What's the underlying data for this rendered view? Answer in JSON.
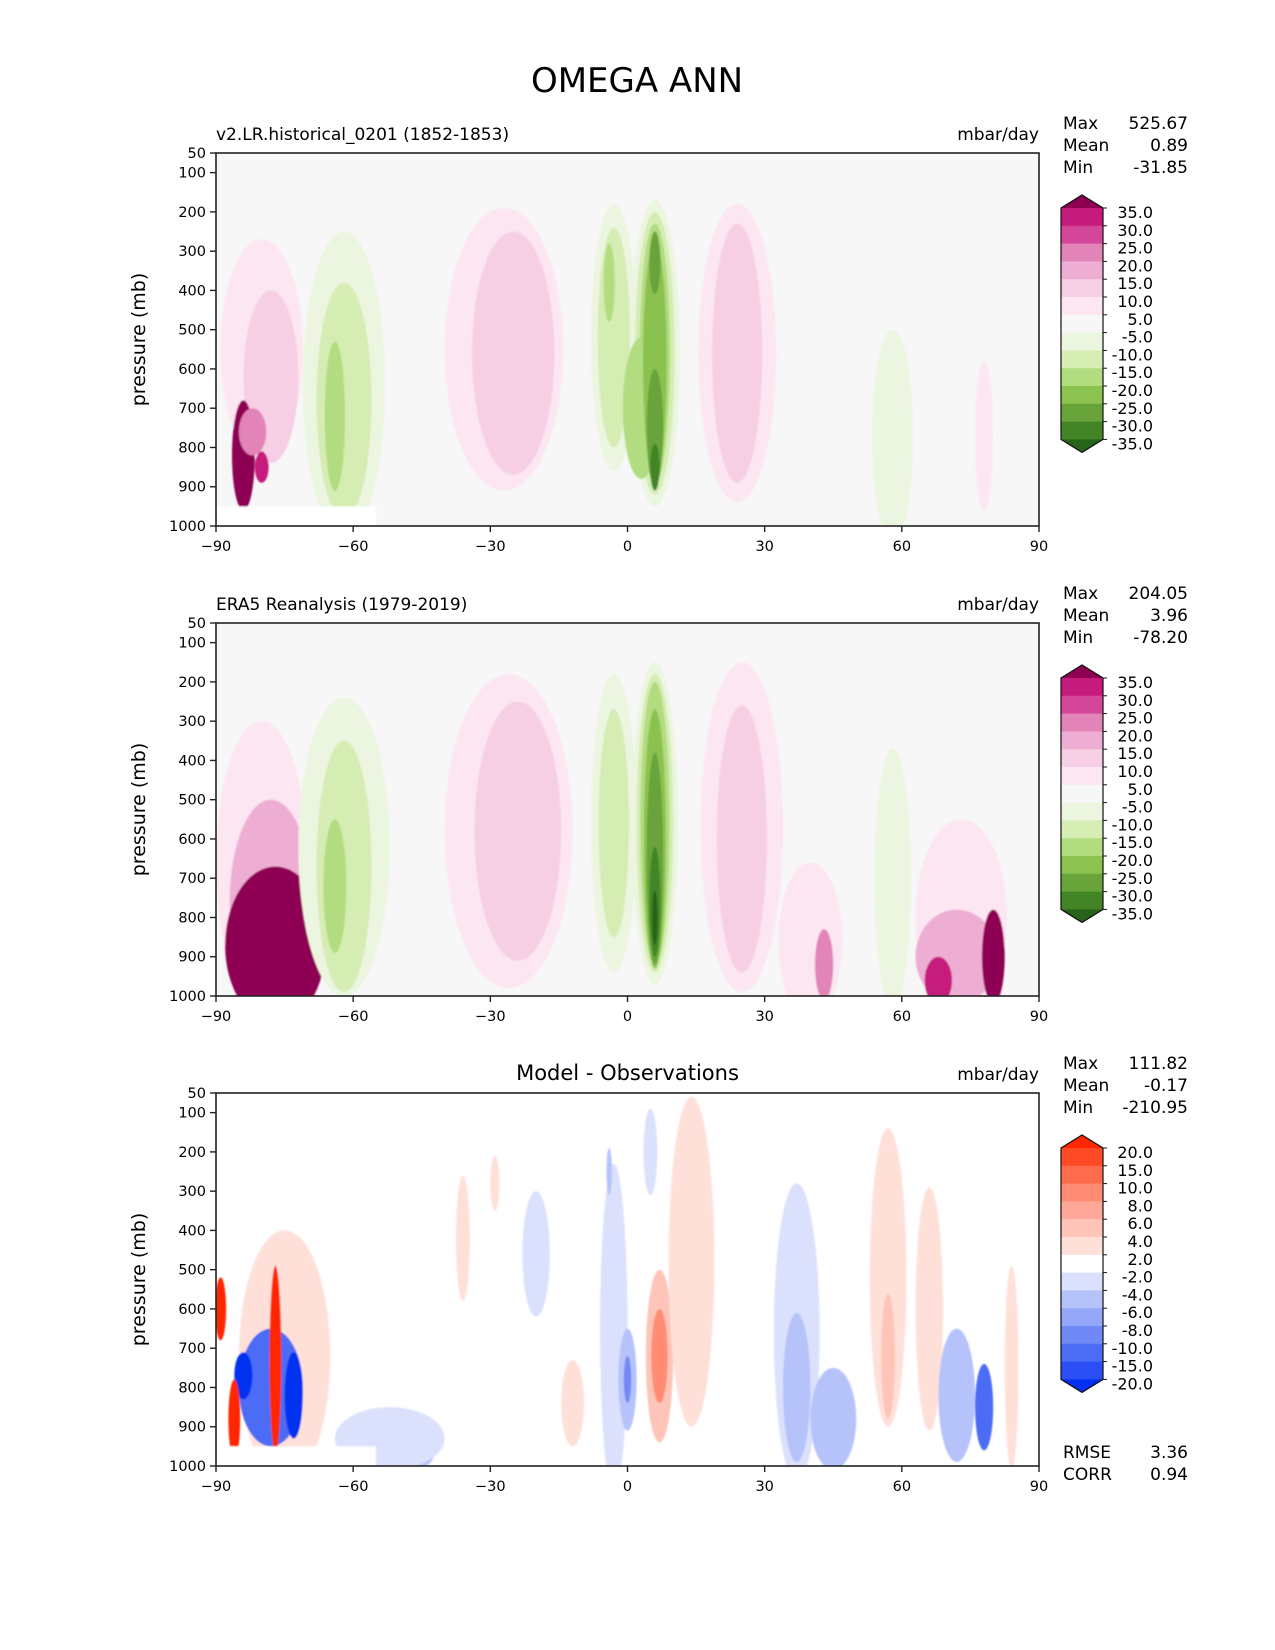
{
  "chart_data": {
    "type": "heatmap",
    "title": "OMEGA ANN",
    "panels": [
      {
        "id": "model",
        "title_left": "v2.LR.historical_0201 (1852-1853)",
        "title_center": "",
        "units": "mbar/day",
        "stats": [
          {
            "label": "Max",
            "value": "525.67"
          },
          {
            "label": "Mean",
            "value": "0.89"
          },
          {
            "label": "Min",
            "value": "-31.85"
          }
        ],
        "colormap": "PiYG_r",
        "background": "#f7f7f7",
        "colorbar": {
          "extend": "both",
          "labels": [
            "35.0",
            "30.0",
            "25.0",
            "20.0",
            "15.0",
            "10.0",
            "5.0",
            "-5.0",
            "-10.0",
            "-15.0",
            "-20.0",
            "-25.0",
            "-30.0",
            "-35.0"
          ],
          "colors": [
            "#8e0152",
            "#c51b7d",
            "#d4469a",
            "#e284b8",
            "#eeaed3",
            "#f7cfe4",
            "#fbe6f1",
            "#f7f7f7",
            "#ebf5df",
            "#d5ecb3",
            "#b1dc7f",
            "#8bc250",
            "#68a43a",
            "#438526",
            "#276419"
          ]
        },
        "blobs": [
          {
            "lat": -80,
            "p": 550,
            "dlat": 9,
            "dp": 280,
            "color": "#fbe6f1"
          },
          {
            "lat": -78,
            "p": 620,
            "dlat": 6,
            "dp": 220,
            "color": "#f7cfe4"
          },
          {
            "lat": -62,
            "p": 640,
            "dlat": 9,
            "dp": 390,
            "color": "#ebf5df"
          },
          {
            "lat": -62,
            "p": 680,
            "dlat": 6,
            "dp": 300,
            "color": "#d5ecb3"
          },
          {
            "lat": -64,
            "p": 720,
            "dlat": 2.2,
            "dp": 190,
            "color": "#b1dc7f"
          },
          {
            "lat": -27,
            "p": 550,
            "dlat": 13,
            "dp": 360,
            "color": "#fbe6f1"
          },
          {
            "lat": -25,
            "p": 560,
            "dlat": 9,
            "dp": 310,
            "color": "#f7cfe4"
          },
          {
            "lat": -3,
            "p": 520,
            "dlat": 5,
            "dp": 340,
            "color": "#ebf5df"
          },
          {
            "lat": -3,
            "p": 520,
            "dlat": 3.5,
            "dp": 280,
            "color": "#d5ecb3"
          },
          {
            "lat": -4,
            "p": 380,
            "dlat": 1.2,
            "dp": 100,
            "color": "#b1dc7f"
          },
          {
            "lat": 6,
            "p": 560,
            "dlat": 5.5,
            "dp": 390,
            "color": "#ebf5df"
          },
          {
            "lat": 6,
            "p": 560,
            "dlat": 4.3,
            "dp": 360,
            "color": "#d5ecb3"
          },
          {
            "lat": 3,
            "p": 700,
            "dlat": 4,
            "dp": 180,
            "color": "#b1dc7f"
          },
          {
            "lat": 6,
            "p": 560,
            "dlat": 3.3,
            "dp": 330,
            "color": "#b1dc7f"
          },
          {
            "lat": 6,
            "p": 580,
            "dlat": 2.6,
            "dp": 300,
            "color": "#8bc250"
          },
          {
            "lat": 6,
            "p": 750,
            "dlat": 1.8,
            "dp": 150,
            "color": "#68a43a"
          },
          {
            "lat": 6,
            "p": 330,
            "dlat": 1.2,
            "dp": 80,
            "color": "#68a43a"
          },
          {
            "lat": 6,
            "p": 850,
            "dlat": 1,
            "dp": 60,
            "color": "#438526"
          },
          {
            "lat": 24,
            "p": 560,
            "dlat": 8.5,
            "dp": 380,
            "color": "#fbe6f1"
          },
          {
            "lat": 24,
            "p": 560,
            "dlat": 5.5,
            "dp": 330,
            "color": "#f7cfe4"
          },
          {
            "lat": 58,
            "p": 770,
            "dlat": 4.5,
            "dp": 270,
            "color": "#ebf5df"
          },
          {
            "lat": 78,
            "p": 770,
            "dlat": 2,
            "dp": 190,
            "color": "#fbe6f1"
          },
          {
            "lat": -84,
            "p": 820,
            "dlat": 2.5,
            "dp": 140,
            "color": "#8e0152"
          },
          {
            "lat": -80,
            "p": 850,
            "dlat": 1.5,
            "dp": 40,
            "color": "#c51b7d"
          },
          {
            "lat": -82,
            "p": 760,
            "dlat": 3,
            "dp": 60,
            "color": "#e284b8"
          }
        ]
      },
      {
        "id": "obs",
        "title_left": "ERA5 Reanalysis (1979-2019)",
        "title_center": "",
        "units": "mbar/day",
        "stats": [
          {
            "label": "Max",
            "value": "204.05"
          },
          {
            "label": "Mean",
            "value": "3.96"
          },
          {
            "label": "Min",
            "value": "-78.20"
          }
        ],
        "colormap": "PiYG_r",
        "background": "#f7f7f7",
        "colorbar": {
          "extend": "both",
          "labels": [
            "35.0",
            "30.0",
            "25.0",
            "20.0",
            "15.0",
            "10.0",
            "5.0",
            "-5.0",
            "-10.0",
            "-15.0",
            "-20.0",
            "-25.0",
            "-30.0",
            "-35.0"
          ],
          "colors": [
            "#8e0152",
            "#c51b7d",
            "#d4469a",
            "#e284b8",
            "#eeaed3",
            "#f7cfe4",
            "#fbe6f1",
            "#f7f7f7",
            "#ebf5df",
            "#d5ecb3",
            "#b1dc7f",
            "#8bc250",
            "#68a43a",
            "#438526",
            "#276419"
          ]
        },
        "blobs": [
          {
            "lat": -80,
            "p": 660,
            "dlat": 10,
            "dp": 360,
            "color": "#fbe6f1"
          },
          {
            "lat": -78,
            "p": 760,
            "dlat": 9,
            "dp": 260,
            "color": "#eeaed3"
          },
          {
            "lat": -77,
            "p": 870,
            "dlat": 11,
            "dp": 200,
            "color": "#8e0152"
          },
          {
            "lat": -62,
            "p": 620,
            "dlat": 10,
            "dp": 380,
            "color": "#ebf5df"
          },
          {
            "lat": -62,
            "p": 670,
            "dlat": 6,
            "dp": 320,
            "color": "#d5ecb3"
          },
          {
            "lat": -64,
            "p": 720,
            "dlat": 2.5,
            "dp": 170,
            "color": "#b1dc7f"
          },
          {
            "lat": -26,
            "p": 580,
            "dlat": 14,
            "dp": 400,
            "color": "#fbe6f1"
          },
          {
            "lat": -24,
            "p": 580,
            "dlat": 9.5,
            "dp": 330,
            "color": "#f7cfe4"
          },
          {
            "lat": -3,
            "p": 560,
            "dlat": 5,
            "dp": 380,
            "color": "#ebf5df"
          },
          {
            "lat": -3,
            "p": 560,
            "dlat": 3.3,
            "dp": 290,
            "color": "#d5ecb3"
          },
          {
            "lat": 6,
            "p": 560,
            "dlat": 5,
            "dp": 410,
            "color": "#ebf5df"
          },
          {
            "lat": 6,
            "p": 560,
            "dlat": 4,
            "dp": 380,
            "color": "#d5ecb3"
          },
          {
            "lat": 6,
            "p": 560,
            "dlat": 3.2,
            "dp": 360,
            "color": "#b1dc7f"
          },
          {
            "lat": 6,
            "p": 600,
            "dlat": 2.4,
            "dp": 330,
            "color": "#8bc250"
          },
          {
            "lat": 6,
            "p": 650,
            "dlat": 1.8,
            "dp": 270,
            "color": "#68a43a"
          },
          {
            "lat": 6,
            "p": 760,
            "dlat": 1.2,
            "dp": 140,
            "color": "#438526"
          },
          {
            "lat": 6,
            "p": 800,
            "dlat": 0.6,
            "dp": 70,
            "color": "#276419"
          },
          {
            "lat": 25,
            "p": 570,
            "dlat": 9,
            "dp": 420,
            "color": "#fbe6f1"
          },
          {
            "lat": 25,
            "p": 600,
            "dlat": 5.5,
            "dp": 340,
            "color": "#f7cfe4"
          },
          {
            "lat": 40,
            "p": 860,
            "dlat": 7,
            "dp": 200,
            "color": "#fbe6f1"
          },
          {
            "lat": 43,
            "p": 920,
            "dlat": 2,
            "dp": 90,
            "color": "#e284b8"
          },
          {
            "lat": 58,
            "p": 700,
            "dlat": 4,
            "dp": 330,
            "color": "#ebf5df"
          },
          {
            "lat": 73,
            "p": 800,
            "dlat": 10,
            "dp": 250,
            "color": "#fbe6f1"
          },
          {
            "lat": 72,
            "p": 900,
            "dlat": 9,
            "dp": 120,
            "color": "#eeaed3"
          },
          {
            "lat": 80,
            "p": 900,
            "dlat": 2.5,
            "dp": 120,
            "color": "#8e0152"
          },
          {
            "lat": 68,
            "p": 960,
            "dlat": 3,
            "dp": 60,
            "color": "#c51b7d"
          }
        ]
      },
      {
        "id": "diff",
        "title_left": "",
        "title_center": "Model - Observations",
        "units": "mbar/day",
        "stats": [
          {
            "label": "Max",
            "value": "111.82"
          },
          {
            "label": "Mean",
            "value": "-0.17"
          },
          {
            "label": "Min",
            "value": "-210.95"
          }
        ],
        "extra_stats": [
          {
            "label": "RMSE",
            "value": "3.36"
          },
          {
            "label": "CORR",
            "value": "0.94"
          }
        ],
        "colormap": "bwr",
        "background": "#ffffff",
        "colorbar": {
          "extend": "both",
          "labels": [
            "20.0",
            "15.0",
            "10.0",
            "8.0",
            "6.0",
            "4.0",
            "2.0",
            "-2.0",
            "-4.0",
            "-6.0",
            "-8.0",
            "-10.0",
            "-15.0",
            "-20.0"
          ],
          "colors": [
            "#ff2600",
            "#ff4a26",
            "#ff6b4d",
            "#ff8c73",
            "#ffa899",
            "#ffc4b8",
            "#ffe0d9",
            "#ffffff",
            "#dbe1fd",
            "#b6c3fb",
            "#94a7f9",
            "#7089f7",
            "#4d6cf5",
            "#2a4ef3",
            "#0430f0"
          ]
        },
        "blobs": [
          {
            "lat": -36,
            "p": 420,
            "dlat": 1.5,
            "dp": 160,
            "color": "#ffe0d9"
          },
          {
            "lat": -29,
            "p": 280,
            "dlat": 1,
            "dp": 70,
            "color": "#ffe0d9"
          },
          {
            "lat": -20,
            "p": 460,
            "dlat": 3,
            "dp": 160,
            "color": "#dbe1fd"
          },
          {
            "lat": -3,
            "p": 650,
            "dlat": 3,
            "dp": 420,
            "color": "#dbe1fd"
          },
          {
            "lat": -4,
            "p": 250,
            "dlat": 0.6,
            "dp": 60,
            "color": "#b6c3fb"
          },
          {
            "lat": 0,
            "p": 780,
            "dlat": 2,
            "dp": 130,
            "color": "#b6c3fb"
          },
          {
            "lat": 0,
            "p": 780,
            "dlat": 0.8,
            "dp": 60,
            "color": "#7089f7"
          },
          {
            "lat": 5,
            "p": 200,
            "dlat": 1.5,
            "dp": 110,
            "color": "#dbe1fd"
          },
          {
            "lat": 7,
            "p": 720,
            "dlat": 3,
            "dp": 220,
            "color": "#ffc4b8"
          },
          {
            "lat": 7,
            "p": 720,
            "dlat": 1.8,
            "dp": 120,
            "color": "#ff8c73"
          },
          {
            "lat": 14,
            "p": 480,
            "dlat": 5,
            "dp": 420,
            "color": "#ffe0d9"
          },
          {
            "lat": -12,
            "p": 840,
            "dlat": 2.5,
            "dp": 110,
            "color": "#ffe0d9"
          },
          {
            "lat": 37,
            "p": 660,
            "dlat": 5,
            "dp": 380,
            "color": "#dbe1fd"
          },
          {
            "lat": 37,
            "p": 800,
            "dlat": 3,
            "dp": 190,
            "color": "#b6c3fb"
          },
          {
            "lat": 45,
            "p": 880,
            "dlat": 5,
            "dp": 130,
            "color": "#b6c3fb"
          },
          {
            "lat": 57,
            "p": 520,
            "dlat": 4,
            "dp": 380,
            "color": "#ffe0d9"
          },
          {
            "lat": 57,
            "p": 720,
            "dlat": 1.5,
            "dp": 160,
            "color": "#ffc4b8"
          },
          {
            "lat": 66,
            "p": 600,
            "dlat": 3,
            "dp": 310,
            "color": "#ffe0d9"
          },
          {
            "lat": 72,
            "p": 820,
            "dlat": 4,
            "dp": 170,
            "color": "#b6c3fb"
          },
          {
            "lat": 78,
            "p": 850,
            "dlat": 2,
            "dp": 110,
            "color": "#4d6cf5"
          },
          {
            "lat": 84,
            "p": 750,
            "dlat": 1.5,
            "dp": 260,
            "color": "#ffe0d9"
          },
          {
            "lat": -50,
            "p": 960,
            "dlat": 8,
            "dp": 60,
            "color": "#b6c3fb"
          },
          {
            "lat": -52,
            "p": 930,
            "dlat": 12,
            "dp": 80,
            "color": "#dbe1fd"
          },
          {
            "lat": -75,
            "p": 720,
            "dlat": 10,
            "dp": 320,
            "color": "#ffe0d9"
          },
          {
            "lat": -78,
            "p": 800,
            "dlat": 7,
            "dp": 150,
            "color": "#4d6cf5"
          },
          {
            "lat": -84,
            "p": 770,
            "dlat": 2,
            "dp": 60,
            "color": "#0430f0"
          },
          {
            "lat": -73,
            "p": 820,
            "dlat": 2,
            "dp": 110,
            "color": "#0430f0"
          },
          {
            "lat": -77,
            "p": 730,
            "dlat": 1.3,
            "dp": 240,
            "color": "#ff2600"
          },
          {
            "lat": -86,
            "p": 880,
            "dlat": 1.3,
            "dp": 100,
            "color": "#ff2600"
          },
          {
            "lat": -89,
            "p": 600,
            "dlat": 1.2,
            "dp": 80,
            "color": "#ff2600"
          }
        ]
      }
    ],
    "xaxis": {
      "range": [
        -90,
        90
      ],
      "ticks": [
        -90,
        -60,
        -30,
        0,
        30,
        60,
        90
      ],
      "tick_labels": [
        "−90",
        "−60",
        "−30",
        "0",
        "30",
        "60",
        "90"
      ]
    },
    "yaxis": {
      "label": "pressure (mb)",
      "range": [
        1000,
        50
      ],
      "ticks": [
        50,
        100,
        200,
        300,
        400,
        500,
        600,
        700,
        800,
        900,
        1000
      ],
      "tick_labels": [
        "50",
        "100",
        "200",
        "300",
        "400",
        "500",
        "600",
        "700",
        "800",
        "900",
        "1000"
      ]
    }
  }
}
